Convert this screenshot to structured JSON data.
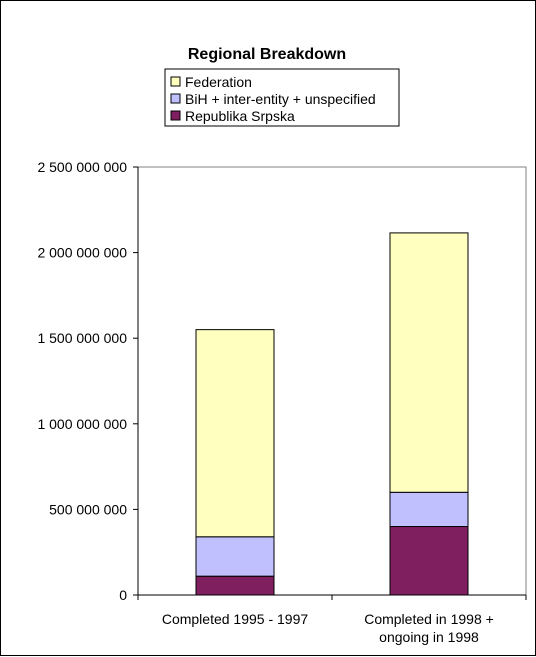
{
  "chart_data": {
    "type": "bar",
    "stacked": true,
    "title": "Regional Breakdown",
    "categories": [
      [
        "Completed 1995 - 1997"
      ],
      [
        "Completed in 1998 +",
        "ongoing in 1998"
      ]
    ],
    "series": [
      {
        "name": "Republika Srpska",
        "color": "#7f1f5f",
        "values": [
          110000000,
          400000000
        ]
      },
      {
        "name": "BiH + inter-entity + unspecified",
        "color": "#c0c0ff",
        "values": [
          230000000,
          200000000
        ]
      },
      {
        "name": "Federation",
        "color": "#ffffc0",
        "values": [
          1210000000,
          1515000000
        ]
      }
    ],
    "legend_order": [
      "Federation",
      "BiH + inter-entity + unspecified",
      "Republika Srpska"
    ],
    "legend_position": "top",
    "ylim": [
      0,
      2500000000
    ],
    "yticks": [
      0,
      500000000,
      1000000000,
      1500000000,
      2000000000,
      2500000000
    ],
    "ytick_labels": [
      "0",
      "500 000 000",
      "1 000 000 000",
      "1 500 000 000",
      "2 000 000 000",
      "2 500 000 000"
    ],
    "grid": false,
    "plot_background": "#ffffff",
    "xlabel": "",
    "ylabel": ""
  }
}
